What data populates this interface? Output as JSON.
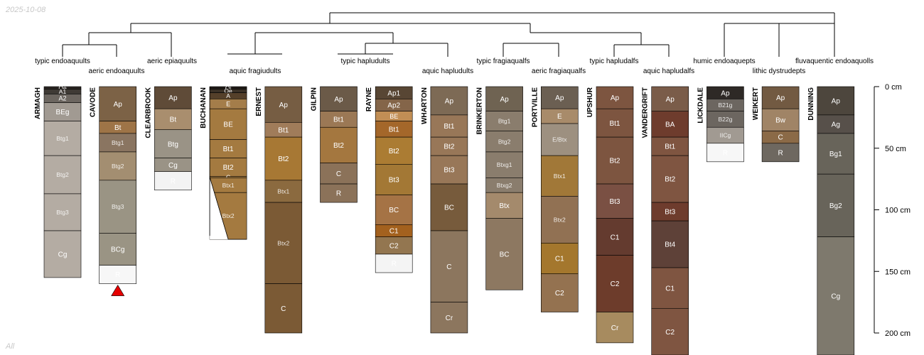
{
  "stamp_top": "2025-10-08",
  "stamp_bottom": "All",
  "chart_data": {
    "type": "soil-profile-sketch",
    "depth_unit": "cm",
    "depth_axis": {
      "ticks": [
        0,
        50,
        100,
        150,
        200
      ],
      "labels": [
        "0 cm",
        "50 cm",
        "100 cm",
        "150 cm",
        "200 cm"
      ]
    },
    "dendrogram": {
      "leaf_order": [
        "ARMAGH",
        "CAVODE",
        "CLEARBROOK",
        "BUCHANAN",
        "ERNEST",
        "GILPIN",
        "RAYNE",
        "WHARTON",
        "BRINKERTON",
        "PORTVILLE",
        "UPSHUR",
        "VANDERGRIFT",
        "LICKDALE",
        "WEIKERT",
        "DUNNING"
      ]
    },
    "taxonomy_labels": [
      {
        "text": "typic endoaquults"
      },
      {
        "text": "aeric endoaquults"
      },
      {
        "text": "aeric epiaquults"
      },
      {
        "text": "aquic fragiudults"
      },
      {
        "text": "typic hapludults"
      },
      {
        "text": "aquic hapludults"
      },
      {
        "text": "typic fragiaqualfs"
      },
      {
        "text": "aeric fragiaqualfs"
      },
      {
        "text": "typic hapludalfs"
      },
      {
        "text": "aquic hapludalfs"
      },
      {
        "text": "humic endoaquepts"
      },
      {
        "text": "lithic dystrudepts"
      },
      {
        "text": "fluvaquentic endoaquolls"
      }
    ],
    "profiles": [
      {
        "name": "ARMAGH",
        "horizons": [
          {
            "name": "Oe",
            "top": 0,
            "bottom": 2,
            "color": "#2b2622"
          },
          {
            "name": "A1",
            "top": 2,
            "bottom": 6,
            "color": "#3f3a35"
          },
          {
            "name": "A2",
            "top": 6,
            "bottom": 13,
            "color": "#6c6660"
          },
          {
            "name": "BEg",
            "top": 13,
            "bottom": 28,
            "color": "#a19a92"
          },
          {
            "name": "Btg1",
            "top": 28,
            "bottom": 56,
            "color": "#b4aca3"
          },
          {
            "name": "Btg2",
            "top": 56,
            "bottom": 87,
            "color": "#b4aca3"
          },
          {
            "name": "Btg3",
            "top": 87,
            "bottom": 117,
            "color": "#b4aca3"
          },
          {
            "name": "Cg",
            "top": 117,
            "bottom": 155,
            "color": "#b4aca3"
          }
        ]
      },
      {
        "name": "CAVODE",
        "marker": "bottom-triangle",
        "marker_color": "#e60000",
        "horizons": [
          {
            "name": "Ap",
            "top": 0,
            "bottom": 28,
            "color": "#7c6246"
          },
          {
            "name": "Bt",
            "top": 28,
            "bottom": 38,
            "color": "#9e7447"
          },
          {
            "name": "Btg1",
            "top": 38,
            "bottom": 53,
            "color": "#8a7561"
          },
          {
            "name": "Btg2",
            "top": 53,
            "bottom": 76,
            "color": "#a38e71"
          },
          {
            "name": "Btg3",
            "top": 76,
            "bottom": 119,
            "color": "#9a9484"
          },
          {
            "name": "BCg",
            "top": 119,
            "bottom": 145,
            "color": "#9a9484"
          },
          {
            "name": "R",
            "top": 145,
            "bottom": 160,
            "color": "#f7f7f7"
          }
        ]
      },
      {
        "name": "CLEARBROOK",
        "horizons": [
          {
            "name": "Ap",
            "top": 0,
            "bottom": 18,
            "color": "#5f4b38"
          },
          {
            "name": "Bt",
            "top": 18,
            "bottom": 35,
            "color": "#a98e6e"
          },
          {
            "name": "Btg",
            "top": 35,
            "bottom": 58,
            "color": "#9a9386"
          },
          {
            "name": "Cg",
            "top": 58,
            "bottom": 69,
            "color": "#9a9386"
          },
          {
            "name": "R",
            "top": 69,
            "bottom": 84,
            "color": "#f3f3f3"
          }
        ]
      },
      {
        "name": "BUCHANAN",
        "horizons": [
          {
            "name": "Oi",
            "top": 0,
            "bottom": 2,
            "color": "#201b17"
          },
          {
            "name": "Oe",
            "top": 2,
            "bottom": 5,
            "color": "#3a3026"
          },
          {
            "name": "A",
            "top": 5,
            "bottom": 10,
            "color": "#55402a"
          },
          {
            "name": "E",
            "top": 10,
            "bottom": 18,
            "color": "#a47d4a"
          },
          {
            "name": "BE",
            "top": 18,
            "bottom": 43,
            "color": "#a47a40"
          },
          {
            "name": "Bt1",
            "top": 43,
            "bottom": 58,
            "color": "#a47a40"
          },
          {
            "name": "Bt2",
            "top": 58,
            "bottom": 73,
            "color": "#a47a40"
          },
          {
            "name": "C",
            "top": 73,
            "bottom": 74,
            "color": "#a47a40"
          },
          {
            "name": "Btx1",
            "top": 74,
            "bottom": 86,
            "color": "#a47a40"
          },
          {
            "name": "Btx2",
            "top": 86,
            "bottom": 124,
            "color": "#a47a40"
          }
        ]
      },
      {
        "name": "ERNEST",
        "horizons": [
          {
            "name": "Ap",
            "top": 0,
            "bottom": 29,
            "color": "#765d43"
          },
          {
            "name": "Bt1",
            "top": 29,
            "bottom": 41,
            "color": "#a07c5a"
          },
          {
            "name": "Bt2",
            "top": 41,
            "bottom": 76,
            "color": "#a77834"
          },
          {
            "name": "Btx1",
            "top": 76,
            "bottom": 94,
            "color": "#8b6a3f"
          },
          {
            "name": "Btx2",
            "top": 94,
            "bottom": 160,
            "color": "#7b5a35"
          },
          {
            "name": "C",
            "top": 160,
            "bottom": 200,
            "color": "#7b5a35"
          }
        ]
      },
      {
        "name": "GILPIN",
        "horizons": [
          {
            "name": "Ap",
            "top": 0,
            "bottom": 20,
            "color": "#6b5a48"
          },
          {
            "name": "Bt1",
            "top": 20,
            "bottom": 33,
            "color": "#9b7855"
          },
          {
            "name": "Bt2",
            "top": 33,
            "bottom": 62,
            "color": "#a4773f"
          },
          {
            "name": "C",
            "top": 62,
            "bottom": 79,
            "color": "#8b7259"
          },
          {
            "name": "R",
            "top": 79,
            "bottom": 94,
            "color": "#8b7259"
          }
        ]
      },
      {
        "name": "RAYNE",
        "horizons": [
          {
            "name": "Ap1",
            "top": 0,
            "bottom": 10,
            "color": "#584634"
          },
          {
            "name": "Ap2",
            "top": 10,
            "bottom": 20,
            "color": "#846549"
          },
          {
            "name": "BE",
            "top": 20,
            "bottom": 28,
            "color": "#c18e55"
          },
          {
            "name": "Bt1",
            "top": 28,
            "bottom": 41,
            "color": "#a4672a"
          },
          {
            "name": "Bt2",
            "top": 41,
            "bottom": 63,
            "color": "#ab7c33"
          },
          {
            "name": "Bt3",
            "top": 63,
            "bottom": 88,
            "color": "#a37835"
          },
          {
            "name": "BC",
            "top": 88,
            "bottom": 112,
            "color": "#a57345"
          },
          {
            "name": "C1",
            "top": 112,
            "bottom": 122,
            "color": "#a3611e"
          },
          {
            "name": "C2",
            "top": 122,
            "bottom": 136,
            "color": "#937650"
          },
          {
            "name": "R",
            "top": 136,
            "bottom": 151,
            "color": "#f4f4f4"
          }
        ]
      },
      {
        "name": "WHARTON",
        "horizons": [
          {
            "name": "Ap",
            "top": 0,
            "bottom": 23,
            "color": "#7d6a55"
          },
          {
            "name": "Bt1",
            "top": 23,
            "bottom": 41,
            "color": "#987758"
          },
          {
            "name": "Bt2",
            "top": 41,
            "bottom": 56,
            "color": "#987758"
          },
          {
            "name": "Bt3",
            "top": 56,
            "bottom": 79,
            "color": "#987758"
          },
          {
            "name": "BC",
            "top": 79,
            "bottom": 117,
            "color": "#775b3c"
          },
          {
            "name": "C",
            "top": 117,
            "bottom": 175,
            "color": "#8c765e"
          },
          {
            "name": "Cr",
            "top": 175,
            "bottom": 200,
            "color": "#8c765e"
          }
        ]
      },
      {
        "name": "BRINKERTON",
        "horizons": [
          {
            "name": "Ap",
            "top": 0,
            "bottom": 20,
            "color": "#6f6352"
          },
          {
            "name": "Btg1",
            "top": 20,
            "bottom": 36,
            "color": "#8a7d6d"
          },
          {
            "name": "Btg2",
            "top": 36,
            "bottom": 53,
            "color": "#8a7d6d"
          },
          {
            "name": "Btxg1",
            "top": 53,
            "bottom": 74,
            "color": "#8a7d6d"
          },
          {
            "name": "Btxg2",
            "top": 74,
            "bottom": 86,
            "color": "#8a7d6d"
          },
          {
            "name": "Btx",
            "top": 86,
            "bottom": 107,
            "color": "#a48a6c"
          },
          {
            "name": "BC",
            "top": 107,
            "bottom": 165,
            "color": "#8d7861"
          }
        ]
      },
      {
        "name": "PORTVILLE",
        "horizons": [
          {
            "name": "Ap",
            "top": 0,
            "bottom": 18,
            "color": "#6b5f52"
          },
          {
            "name": "E",
            "top": 18,
            "bottom": 30,
            "color": "#a88b6a"
          },
          {
            "name": "E/Btx",
            "top": 30,
            "bottom": 56,
            "color": "#9d9080"
          },
          {
            "name": "Btx1",
            "top": 56,
            "bottom": 89,
            "color": "#a17838"
          },
          {
            "name": "Btx2",
            "top": 89,
            "bottom": 127,
            "color": "#917153"
          },
          {
            "name": "C1",
            "top": 127,
            "bottom": 152,
            "color": "#a4772d"
          },
          {
            "name": "C2",
            "top": 152,
            "bottom": 183,
            "color": "#947250"
          }
        ]
      },
      {
        "name": "UPSHUR",
        "horizons": [
          {
            "name": "Ap",
            "top": 0,
            "bottom": 18,
            "color": "#7d5540"
          },
          {
            "name": "Bt1",
            "top": 18,
            "bottom": 41,
            "color": "#7d5540"
          },
          {
            "name": "Bt2",
            "top": 41,
            "bottom": 79,
            "color": "#7d5540"
          },
          {
            "name": "Bt3",
            "top": 79,
            "bottom": 107,
            "color": "#7a5043"
          },
          {
            "name": "C1",
            "top": 107,
            "bottom": 137,
            "color": "#643b2f"
          },
          {
            "name": "C2",
            "top": 137,
            "bottom": 183,
            "color": "#6d3c2b"
          },
          {
            "name": "Cr",
            "top": 183,
            "bottom": 208,
            "color": "#a78b5f"
          }
        ]
      },
      {
        "name": "VANDERGRIFT",
        "horizons": [
          {
            "name": "Ap",
            "top": 0,
            "bottom": 20,
            "color": "#7a5c49"
          },
          {
            "name": "BA",
            "top": 20,
            "bottom": 41,
            "color": "#6e3c2d"
          },
          {
            "name": "Bt1",
            "top": 41,
            "bottom": 56,
            "color": "#7f5541"
          },
          {
            "name": "Bt2",
            "top": 56,
            "bottom": 94,
            "color": "#7f5541"
          },
          {
            "name": "Bt3",
            "top": 94,
            "bottom": 109,
            "color": "#6e3c2d"
          },
          {
            "name": "Bt4",
            "top": 109,
            "bottom": 147,
            "color": "#5e4138"
          },
          {
            "name": "C1",
            "top": 147,
            "bottom": 180,
            "color": "#7f5541"
          },
          {
            "name": "C2",
            "top": 180,
            "bottom": 225,
            "color": "#7f5541"
          }
        ]
      },
      {
        "name": "LICKDALE",
        "horizons": [
          {
            "name": "Ap",
            "top": 0,
            "bottom": 10,
            "color": "#2e2926"
          },
          {
            "name": "B21g",
            "top": 10,
            "bottom": 20,
            "color": "#6c6660"
          },
          {
            "name": "B22g",
            "top": 20,
            "bottom": 33,
            "color": "#6c6660"
          },
          {
            "name": "IICg",
            "top": 33,
            "bottom": 46,
            "color": "#a19a92"
          },
          {
            "name": "R",
            "top": 46,
            "bottom": 61,
            "color": "#f7f7f7"
          }
        ]
      },
      {
        "name": "WEIKERT",
        "horizons": [
          {
            "name": "Ap",
            "top": 0,
            "bottom": 18,
            "color": "#725a42"
          },
          {
            "name": "Bw",
            "top": 18,
            "bottom": 36,
            "color": "#a08466"
          },
          {
            "name": "C",
            "top": 36,
            "bottom": 46,
            "color": "#8b6a47"
          },
          {
            "name": "R",
            "top": 46,
            "bottom": 61,
            "color": "#6e6860"
          }
        ]
      },
      {
        "name": "DUNNING",
        "horizons": [
          {
            "name": "Ap",
            "top": 0,
            "bottom": 23,
            "color": "#4d463d"
          },
          {
            "name": "Ag",
            "top": 23,
            "bottom": 38,
            "color": "#57504a"
          },
          {
            "name": "Bg1",
            "top": 38,
            "bottom": 71,
            "color": "#68645a"
          },
          {
            "name": "Bg2",
            "top": 71,
            "bottom": 122,
            "color": "#68645a"
          },
          {
            "name": "Cg",
            "top": 122,
            "bottom": 240,
            "color": "#7e796d"
          }
        ]
      }
    ]
  }
}
